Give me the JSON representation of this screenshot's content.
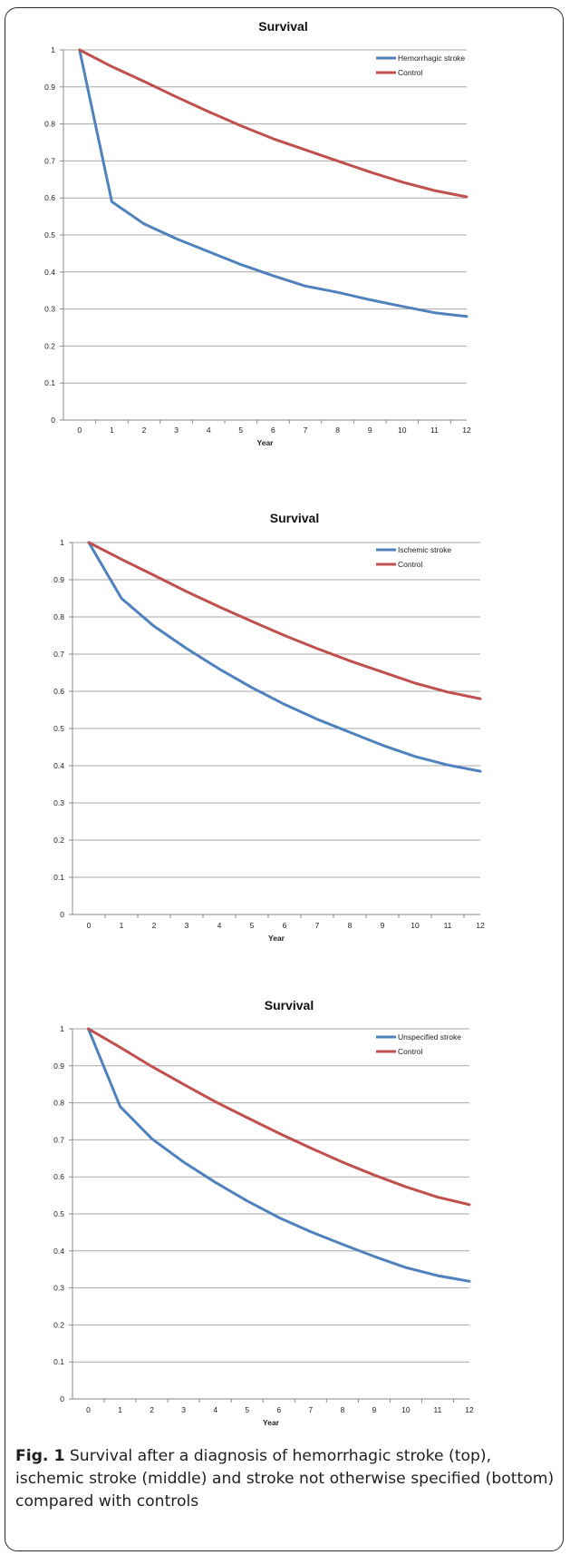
{
  "chart_data": [
    {
      "type": "line",
      "title": "Survival",
      "xlabel": "Year",
      "ylabel": "",
      "x": [
        0,
        1,
        2,
        3,
        4,
        5,
        6,
        7,
        8,
        9,
        10,
        11,
        12
      ],
      "ylim": [
        0,
        1
      ],
      "yticks": [
        "0",
        "0.1",
        "0.2",
        "0.3",
        "0.4",
        "0.5",
        "0.6",
        "0.7",
        "0.8",
        "0.9",
        "1"
      ],
      "grid": "horizontal",
      "legend_position": "top-right",
      "series": [
        {
          "name": "Hemorrhagic stroke",
          "color": "#4f81bd",
          "values": [
            1.0,
            0.59,
            0.53,
            0.49,
            0.455,
            0.42,
            0.39,
            0.362,
            0.345,
            0.325,
            0.307,
            0.29,
            0.28
          ]
        },
        {
          "name": "Control",
          "color": "#c0504d",
          "values": [
            1.0,
            0.955,
            0.915,
            0.873,
            0.833,
            0.795,
            0.76,
            0.73,
            0.7,
            0.67,
            0.643,
            0.62,
            0.603
          ]
        }
      ]
    },
    {
      "type": "line",
      "title": "Survival",
      "xlabel": "Year",
      "ylabel": "",
      "x": [
        0,
        1,
        2,
        3,
        4,
        5,
        6,
        7,
        8,
        9,
        10,
        11,
        12
      ],
      "ylim": [
        0,
        1
      ],
      "yticks": [
        "0",
        "0.1",
        "0.2",
        "0.3",
        "0.4",
        "0.5",
        "0.6",
        "0.7",
        "0.8",
        "0.9",
        "1"
      ],
      "grid": "horizontal",
      "legend_position": "top-right",
      "series": [
        {
          "name": "Ischemic stroke",
          "color": "#4f81bd",
          "values": [
            1.0,
            0.85,
            0.775,
            0.715,
            0.66,
            0.61,
            0.565,
            0.525,
            0.49,
            0.455,
            0.425,
            0.402,
            0.385
          ]
        },
        {
          "name": "Control",
          "color": "#c0504d",
          "values": [
            1.0,
            0.955,
            0.912,
            0.868,
            0.827,
            0.788,
            0.75,
            0.715,
            0.682,
            0.652,
            0.622,
            0.598,
            0.58
          ]
        }
      ]
    },
    {
      "type": "line",
      "title": "Survival",
      "xlabel": "Year",
      "ylabel": "",
      "x": [
        0,
        1,
        2,
        3,
        4,
        5,
        6,
        7,
        8,
        9,
        10,
        11,
        12
      ],
      "ylim": [
        0,
        1
      ],
      "yticks": [
        "0",
        "0.1",
        "0.2",
        "0.3",
        "0.4",
        "0.5",
        "0.6",
        "0.7",
        "0.8",
        "0.9",
        "1"
      ],
      "grid": "horizontal",
      "legend_position": "top-right",
      "series": [
        {
          "name": "Unspecified stroke",
          "color": "#4f81bd",
          "values": [
            1.0,
            0.79,
            0.703,
            0.64,
            0.585,
            0.535,
            0.49,
            0.452,
            0.418,
            0.385,
            0.355,
            0.333,
            0.318
          ]
        },
        {
          "name": "Control",
          "color": "#c0504d",
          "values": [
            1.0,
            0.95,
            0.898,
            0.85,
            0.803,
            0.76,
            0.718,
            0.678,
            0.64,
            0.605,
            0.573,
            0.545,
            0.525
          ]
        }
      ]
    }
  ],
  "caption": {
    "label": "Fig. 1",
    "text": " Survival after a diagnosis of hemorrhagic stroke (top), ischemic stroke (middle) and stroke not otherwise specified (bottom) compared with controls"
  }
}
